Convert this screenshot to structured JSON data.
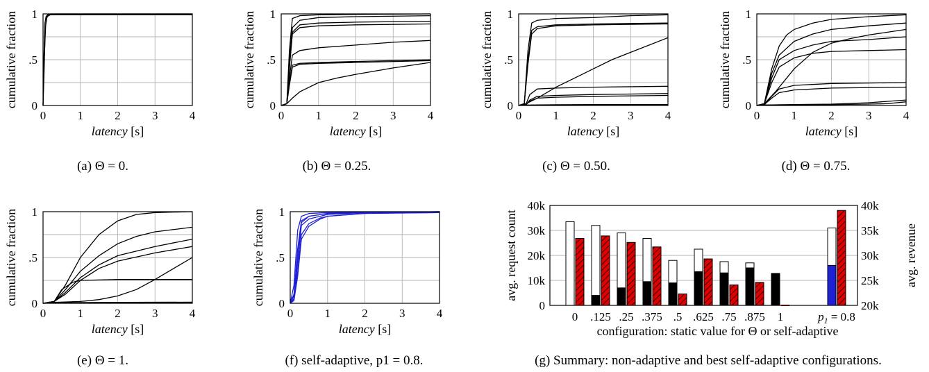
{
  "chart_data": [
    {
      "type": "line",
      "id": "a",
      "xlabel": "latency",
      "xunit": "[s]",
      "ylabel": "cumulative fraction",
      "xlim": [
        0,
        4
      ],
      "ylim": [
        0,
        1
      ],
      "grid": true,
      "xticks": [
        "0",
        "1",
        "2",
        "3",
        "4"
      ],
      "yticks": [
        "0",
        ".5",
        "1"
      ],
      "caption": "(a) Θ = 0.",
      "series_color": "#000000",
      "series": [
        {
          "x": [
            0,
            0.02,
            0.05,
            0.08,
            0.12,
            0.2,
            4
          ],
          "y": [
            0,
            0.5,
            0.9,
            0.97,
            0.99,
            1,
            1
          ]
        },
        {
          "x": [
            0,
            0.03,
            0.06,
            0.1,
            0.15,
            0.25,
            4
          ],
          "y": [
            0,
            0.4,
            0.85,
            0.96,
            0.985,
            0.995,
            0.995
          ]
        },
        {
          "x": [
            0,
            0.025,
            0.07,
            0.11,
            0.2,
            4
          ],
          "y": [
            0,
            0.45,
            0.88,
            0.975,
            0.99,
            0.99
          ]
        }
      ]
    },
    {
      "type": "line",
      "id": "b",
      "xlabel": "latency",
      "xunit": "[s]",
      "ylabel": "cumulative fraction",
      "xlim": [
        0,
        4
      ],
      "ylim": [
        0,
        1
      ],
      "grid": true,
      "xticks": [
        "0",
        "1",
        "2",
        "3",
        "4"
      ],
      "yticks": [
        "0",
        ".5",
        "1"
      ],
      "caption": "(b) Θ = 0.25.",
      "series_color": "#000000",
      "series": [
        {
          "x": [
            0,
            0.15,
            0.22,
            0.3,
            0.5,
            1,
            4
          ],
          "y": [
            0,
            0.02,
            0.6,
            0.95,
            0.98,
            0.99,
            1
          ]
        },
        {
          "x": [
            0,
            0.15,
            0.22,
            0.3,
            0.5,
            1,
            2,
            4
          ],
          "y": [
            0,
            0.02,
            0.5,
            0.85,
            0.93,
            0.96,
            0.97,
            0.98
          ]
        },
        {
          "x": [
            0,
            0.15,
            0.22,
            0.3,
            0.5,
            1,
            2,
            4
          ],
          "y": [
            0,
            0.02,
            0.45,
            0.8,
            0.88,
            0.9,
            0.91,
            0.92
          ]
        },
        {
          "x": [
            0,
            0.15,
            0.22,
            0.3,
            0.5,
            1,
            2,
            4
          ],
          "y": [
            0,
            0.02,
            0.4,
            0.78,
            0.85,
            0.87,
            0.88,
            0.89
          ]
        },
        {
          "x": [
            0,
            0.15,
            0.22,
            0.3,
            0.5,
            1,
            2,
            3,
            4
          ],
          "y": [
            0,
            0.02,
            0.3,
            0.55,
            0.6,
            0.63,
            0.66,
            0.69,
            0.71
          ]
        },
        {
          "x": [
            0,
            0.15,
            0.22,
            0.3,
            0.5,
            1,
            2,
            4
          ],
          "y": [
            0,
            0.02,
            0.25,
            0.44,
            0.46,
            0.47,
            0.48,
            0.5
          ]
        },
        {
          "x": [
            0,
            0.15,
            0.22,
            0.3,
            0.5,
            1,
            2,
            4
          ],
          "y": [
            0,
            0.02,
            0.22,
            0.42,
            0.45,
            0.46,
            0.47,
            0.49
          ]
        },
        {
          "x": [
            0,
            0.15,
            0.3,
            0.5,
            1,
            1.5,
            2,
            3,
            4
          ],
          "y": [
            0,
            0.02,
            0.08,
            0.15,
            0.25,
            0.3,
            0.34,
            0.41,
            0.47
          ]
        }
      ]
    },
    {
      "type": "line",
      "id": "c",
      "xlabel": "latency",
      "xunit": "[s]",
      "ylabel": "cumulative fraction",
      "xlim": [
        0,
        4
      ],
      "ylim": [
        0,
        1
      ],
      "grid": true,
      "xticks": [
        "0",
        "1",
        "2",
        "3",
        "4"
      ],
      "yticks": [
        "0",
        ".5",
        "1"
      ],
      "caption": "(c) Θ = 0.50.",
      "series_color": "#000000",
      "series": [
        {
          "x": [
            0,
            0.15,
            0.25,
            0.35,
            0.5,
            1,
            2,
            3,
            4
          ],
          "y": [
            0,
            0.02,
            0.6,
            0.9,
            0.93,
            0.95,
            0.96,
            0.98,
            0.99
          ]
        },
        {
          "x": [
            0,
            0.15,
            0.25,
            0.35,
            0.5,
            1,
            2,
            4
          ],
          "y": [
            0,
            0.02,
            0.5,
            0.82,
            0.86,
            0.88,
            0.89,
            0.9
          ]
        },
        {
          "x": [
            0,
            0.15,
            0.25,
            0.35,
            0.5,
            1,
            2,
            4
          ],
          "y": [
            0,
            0.02,
            0.45,
            0.78,
            0.84,
            0.87,
            0.88,
            0.89
          ]
        },
        {
          "x": [
            0,
            0.2,
            0.5,
            1,
            1.5,
            2,
            2.5,
            3,
            3.5,
            4
          ],
          "y": [
            0,
            0.02,
            0.08,
            0.2,
            0.3,
            0.4,
            0.5,
            0.58,
            0.66,
            0.74
          ]
        },
        {
          "x": [
            0,
            0.2,
            0.3,
            0.5,
            1,
            2,
            4
          ],
          "y": [
            0,
            0.02,
            0.12,
            0.18,
            0.19,
            0.2,
            0.21
          ]
        },
        {
          "x": [
            0,
            0.2,
            0.3,
            0.5,
            1,
            2,
            4
          ],
          "y": [
            0,
            0.01,
            0.06,
            0.1,
            0.11,
            0.12,
            0.13
          ]
        },
        {
          "x": [
            0,
            0.2,
            0.3,
            0.5,
            1,
            2,
            4
          ],
          "y": [
            0,
            0.01,
            0.05,
            0.08,
            0.09,
            0.1,
            0.11
          ]
        },
        {
          "x": [
            0,
            0.2,
            1,
            2,
            4
          ],
          "y": [
            0,
            0.005,
            0.008,
            0.01,
            0.01
          ]
        }
      ]
    },
    {
      "type": "line",
      "id": "d",
      "xlabel": "latency",
      "xunit": "[s]",
      "ylabel": "cumulative fraction",
      "xlim": [
        0,
        4
      ],
      "ylim": [
        0,
        1
      ],
      "grid": true,
      "xticks": [
        "0",
        "1",
        "2",
        "3",
        "4"
      ],
      "yticks": [
        "0",
        ".5",
        "1"
      ],
      "caption": "(d) Θ = 0.75.",
      "series_color": "#000000",
      "series": [
        {
          "x": [
            0,
            0.2,
            0.4,
            0.6,
            0.8,
            1,
            1.5,
            2,
            3,
            4
          ],
          "y": [
            0,
            0.02,
            0.4,
            0.65,
            0.77,
            0.83,
            0.9,
            0.94,
            0.97,
            0.99
          ]
        },
        {
          "x": [
            0,
            0.2,
            0.4,
            0.6,
            1,
            1.5,
            2,
            3,
            4
          ],
          "y": [
            0,
            0.02,
            0.35,
            0.55,
            0.7,
            0.78,
            0.83,
            0.87,
            0.9
          ]
        },
        {
          "x": [
            0,
            0.2,
            0.5,
            1,
            1.5,
            2,
            2.5,
            3,
            4
          ],
          "y": [
            0,
            0.02,
            0.15,
            0.4,
            0.58,
            0.68,
            0.73,
            0.77,
            0.83
          ]
        },
        {
          "x": [
            0,
            0.2,
            0.4,
            0.6,
            1,
            1.5,
            2,
            3,
            4
          ],
          "y": [
            0,
            0.02,
            0.3,
            0.5,
            0.6,
            0.66,
            0.7,
            0.72,
            0.75
          ]
        },
        {
          "x": [
            0,
            0.2,
            0.4,
            0.6,
            1,
            1.5,
            2,
            3,
            4
          ],
          "y": [
            0,
            0.02,
            0.25,
            0.42,
            0.52,
            0.57,
            0.59,
            0.6,
            0.61
          ]
        },
        {
          "x": [
            0,
            0.2,
            0.4,
            0.6,
            1,
            2,
            4
          ],
          "y": [
            0,
            0.01,
            0.1,
            0.18,
            0.22,
            0.24,
            0.25
          ]
        },
        {
          "x": [
            0,
            0.2,
            0.4,
            0.6,
            1,
            2,
            4
          ],
          "y": [
            0,
            0.01,
            0.08,
            0.14,
            0.17,
            0.19,
            0.2
          ]
        },
        {
          "x": [
            0,
            0.2,
            1,
            2,
            3,
            4
          ],
          "y": [
            0,
            0.005,
            0.01,
            0.015,
            0.03,
            0.06
          ]
        },
        {
          "x": [
            0,
            0.2,
            1,
            2,
            3,
            3.5,
            4
          ],
          "y": [
            0,
            0.005,
            0.008,
            0.01,
            0.015,
            0.02,
            0.04
          ]
        }
      ]
    },
    {
      "type": "line",
      "id": "e",
      "xlabel": "latency",
      "xunit": "[s]",
      "ylabel": "cumulative fraction",
      "xlim": [
        0,
        4
      ],
      "ylim": [
        0,
        1
      ],
      "grid": true,
      "xticks": [
        "0",
        "1",
        "2",
        "3",
        "4"
      ],
      "yticks": [
        "0",
        ".5",
        "1"
      ],
      "caption": "(e) Θ = 1.",
      "series_color": "#000000",
      "series": [
        {
          "x": [
            0,
            0.3,
            0.6,
            1,
            1.5,
            2,
            2.5,
            3,
            4
          ],
          "y": [
            0,
            0.02,
            0.2,
            0.5,
            0.75,
            0.9,
            0.97,
            0.99,
            1
          ]
        },
        {
          "x": [
            0,
            0.3,
            0.6,
            1,
            1.5,
            2,
            2.5,
            3,
            4
          ],
          "y": [
            0,
            0.02,
            0.15,
            0.35,
            0.52,
            0.65,
            0.73,
            0.78,
            0.83
          ]
        },
        {
          "x": [
            0,
            0.3,
            0.6,
            1,
            1.5,
            2,
            3,
            4
          ],
          "y": [
            0,
            0.02,
            0.12,
            0.28,
            0.42,
            0.52,
            0.62,
            0.7
          ]
        },
        {
          "x": [
            0,
            0.3,
            0.6,
            1,
            1.5,
            2,
            3,
            4
          ],
          "y": [
            0,
            0.02,
            0.1,
            0.25,
            0.38,
            0.46,
            0.55,
            0.62
          ]
        },
        {
          "x": [
            0,
            0.3,
            0.5,
            0.8,
            1,
            2,
            4
          ],
          "y": [
            0,
            0.02,
            0.15,
            0.23,
            0.25,
            0.26,
            0.26
          ]
        },
        {
          "x": [
            0,
            0.3,
            1,
            1.5,
            2,
            2.5,
            3,
            3.5,
            4
          ],
          "y": [
            0,
            0.01,
            0.02,
            0.04,
            0.08,
            0.15,
            0.26,
            0.38,
            0.5
          ]
        },
        {
          "x": [
            0,
            0.3,
            1,
            2,
            4
          ],
          "y": [
            0,
            0.005,
            0.008,
            0.01,
            0.012
          ]
        },
        {
          "x": [
            0,
            0.3,
            1,
            2,
            4
          ],
          "y": [
            0,
            0.003,
            0.005,
            0.008,
            0.01
          ]
        }
      ]
    },
    {
      "type": "line",
      "id": "f",
      "xlabel": "latency",
      "xunit": "[s]",
      "ylabel": "cumulative fraction",
      "xlim": [
        0,
        4
      ],
      "ylim": [
        0,
        1
      ],
      "grid": true,
      "xticks": [
        "0",
        "1",
        "2",
        "3",
        "4"
      ],
      "yticks": [
        "0",
        ".5",
        "1"
      ],
      "caption": "(f) self-adaptive, p1 = 0.8.",
      "series_color": "#1f1fd6",
      "series": [
        {
          "x": [
            0,
            0.1,
            0.2,
            0.3,
            0.5,
            1,
            4
          ],
          "y": [
            0,
            0.2,
            0.8,
            0.95,
            0.98,
            0.99,
            1
          ]
        },
        {
          "x": [
            0,
            0.1,
            0.2,
            0.3,
            0.5,
            1,
            2,
            4
          ],
          "y": [
            0,
            0.1,
            0.6,
            0.9,
            0.95,
            0.98,
            0.99,
            1
          ]
        },
        {
          "x": [
            0,
            0.1,
            0.2,
            0.3,
            0.5,
            1,
            2,
            4
          ],
          "y": [
            0,
            0.05,
            0.45,
            0.85,
            0.92,
            0.97,
            0.99,
            1
          ]
        },
        {
          "x": [
            0,
            0.1,
            0.2,
            0.3,
            0.5,
            0.8,
            1,
            2,
            4
          ],
          "y": [
            0,
            0.05,
            0.35,
            0.75,
            0.87,
            0.93,
            0.95,
            0.985,
            0.99
          ]
        },
        {
          "x": [
            0,
            0.1,
            0.2,
            0.3,
            0.5,
            0.8,
            1,
            2,
            4
          ],
          "y": [
            0,
            0.03,
            0.3,
            0.7,
            0.84,
            0.92,
            0.95,
            0.98,
            0.99
          ]
        },
        {
          "x": [
            0,
            0.1,
            0.2,
            0.3,
            0.5,
            1,
            2,
            4
          ],
          "y": [
            0,
            0.08,
            0.5,
            0.88,
            0.95,
            0.98,
            0.99,
            0.995
          ]
        }
      ]
    },
    {
      "type": "bar",
      "id": "g",
      "xlabel": "configuration: static value for Θ or self-adaptive",
      "ylabel": "avg. request count",
      "ylabel_right": "avg. revenue",
      "ylim": [
        0,
        40000
      ],
      "ylim_right": [
        20000,
        40000
      ],
      "grid": true,
      "yticks": [
        "0",
        "10k",
        "20k",
        "30k",
        "40k"
      ],
      "yticks_right": [
        "20k",
        "25k",
        "30k",
        "35k",
        "40k"
      ],
      "categories": [
        "0",
        ".125",
        ".25",
        ".375",
        ".5",
        ".625",
        ".75",
        ".875",
        "1",
        "p1 = 0.8"
      ],
      "caption": "(g) Summary: non-adaptive and best self-adaptive configurations.",
      "series": [
        {
          "kind": "total_requests_outline",
          "values": [
            33500,
            32000,
            29000,
            26800,
            18000,
            22500,
            17500,
            17000,
            null,
            31000
          ]
        },
        {
          "kind": "filled_requests",
          "color_note": "black (blue for self-adaptive)",
          "values": [
            0,
            4000,
            7000,
            9500,
            9000,
            13500,
            13000,
            15000,
            12800,
            16000
          ]
        },
        {
          "kind": "revenue_hatched",
          "color": "#e00000",
          "values": [
            33400,
            33900,
            32600,
            31700,
            22300,
            29300,
            24100,
            24600,
            20000,
            39000
          ]
        }
      ]
    }
  ]
}
